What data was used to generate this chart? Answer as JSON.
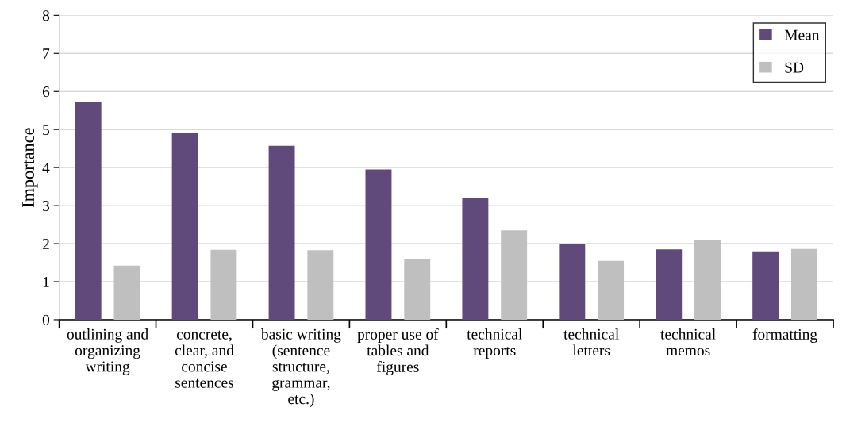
{
  "chart_data": {
    "type": "bar",
    "ylabel": "Importance",
    "categories": [
      "outlining and organizing writing",
      "concrete, clear, and concise sentences",
      "basic writing (sentence structure, grammar, etc.)",
      "proper use of tables and figures",
      "technical reports",
      "technical letters",
      "technical memos",
      "formatting"
    ],
    "series": [
      {
        "name": "Mean",
        "color": "#604a7b",
        "values": [
          5.72,
          4.91,
          4.57,
          3.95,
          3.19,
          2.0,
          1.85,
          1.8
        ]
      },
      {
        "name": "SD",
        "color": "#bfbfbf",
        "values": [
          1.42,
          1.84,
          1.83,
          1.59,
          2.35,
          1.55,
          2.1,
          1.86
        ]
      }
    ],
    "ylim": [
      0,
      8
    ],
    "yticks": [
      0,
      1,
      2,
      3,
      4,
      5,
      6,
      7,
      8
    ],
    "grid": "y",
    "legend": "top right"
  }
}
